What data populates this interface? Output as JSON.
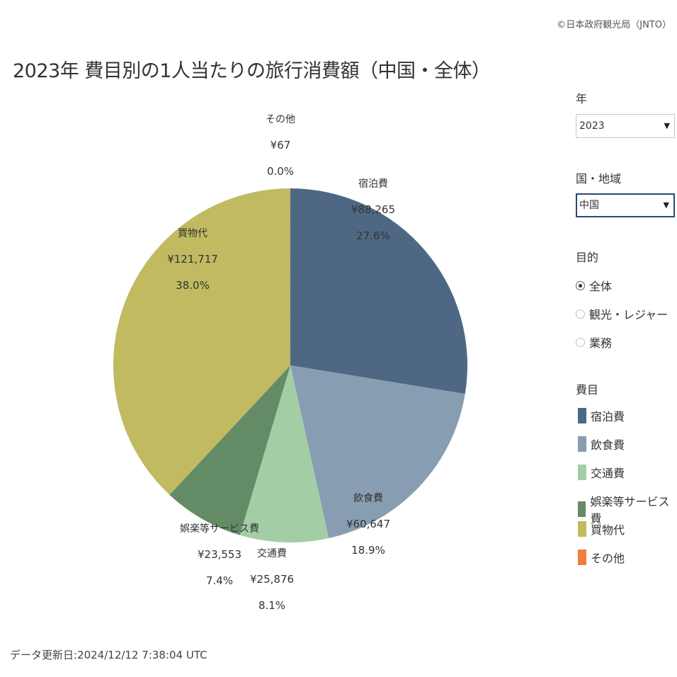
{
  "header": {
    "copyright": "©日本政府観光局（JNTO）",
    "title": "2023年 費目別の1人当たりの旅行消費額（中国・全体）"
  },
  "footer": {
    "updated": "データ更新日:2024/12/12 7:38:04 UTC"
  },
  "filters": {
    "year": {
      "label": "年",
      "value": "2023"
    },
    "region": {
      "label": "国・地域",
      "value": "中国"
    },
    "purpose": {
      "label": "目的",
      "options": [
        {
          "label": "全体",
          "checked": true
        },
        {
          "label": "観光・レジャー",
          "checked": false
        },
        {
          "label": "業務",
          "checked": false
        }
      ]
    }
  },
  "legend": {
    "label": "費目",
    "items": [
      {
        "label": "宿泊費",
        "color": "#4e6883"
      },
      {
        "label": "飲食費",
        "color": "#879eb2"
      },
      {
        "label": "交通費",
        "color": "#a3cea5"
      },
      {
        "label": "娯楽等サービス費",
        "color": "#638b65"
      },
      {
        "label": "買物代",
        "color": "#c1ba61"
      },
      {
        "label": "その他",
        "color": "#f07e3f"
      }
    ]
  },
  "chart_data": {
    "type": "pie",
    "slices": [
      {
        "label": "宿泊費",
        "value": 88265,
        "amount": "¥88,265",
        "percent": "27.6%",
        "color": "#4e6883"
      },
      {
        "label": "飲食費",
        "value": 60647,
        "amount": "¥60,647",
        "percent": "18.9%",
        "color": "#879eb2"
      },
      {
        "label": "交通費",
        "value": 25876,
        "amount": "¥25,876",
        "percent": "8.1%",
        "color": "#a3cea5"
      },
      {
        "label": "娯楽等サービス費",
        "value": 23553,
        "amount": "¥23,553",
        "percent": "7.4%",
        "color": "#638b65"
      },
      {
        "label": "買物代",
        "value": 121717,
        "amount": "¥121,717",
        "percent": "38.0%",
        "color": "#c1ba61"
      },
      {
        "label": "その他",
        "value": 67,
        "amount": "¥67",
        "percent": "0.0%",
        "color": "#f07e3f"
      }
    ]
  }
}
